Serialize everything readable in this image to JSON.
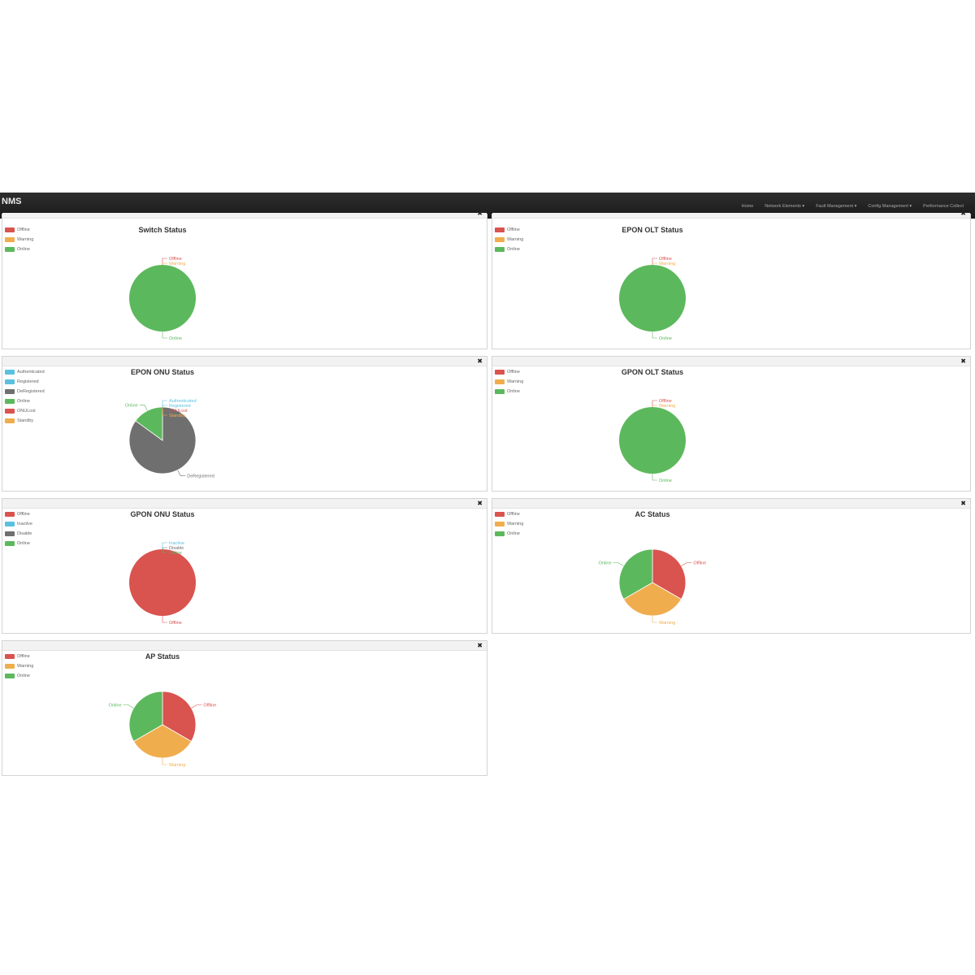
{
  "app": {
    "brand": "NMS",
    "nav": [
      "Home",
      "Network Elements ▾",
      "Fault Management ▾",
      "Config Management ▾",
      "Performance Collect"
    ]
  },
  "colors": {
    "red": "#d9534f",
    "orange": "#f0ad4e",
    "green": "#5cb85c",
    "blue": "#5bc0de",
    "gray": "#6f6f6f"
  },
  "close_icon": "✖",
  "panels": [
    {
      "title": "Switch Status",
      "legend": [
        {
          "label": "Offline",
          "color": "#d9534f"
        },
        {
          "label": "Warning",
          "color": "#f0ad4e"
        },
        {
          "label": "Online",
          "color": "#5cb85c"
        }
      ],
      "chart_data": {
        "type": "pie",
        "title": "Switch Status",
        "labels": [
          "Offline",
          "Warning",
          "Online"
        ],
        "values": [
          0,
          0,
          100
        ],
        "colors": [
          "#d9534f",
          "#f0ad4e",
          "#5cb85c"
        ]
      }
    },
    {
      "title": "EPON OLT Status",
      "legend": [
        {
          "label": "Offline",
          "color": "#d9534f"
        },
        {
          "label": "Warning",
          "color": "#f0ad4e"
        },
        {
          "label": "Online",
          "color": "#5cb85c"
        }
      ],
      "chart_data": {
        "type": "pie",
        "title": "EPON OLT Status",
        "labels": [
          "Offline",
          "Warning",
          "Online"
        ],
        "values": [
          0,
          0,
          100
        ],
        "colors": [
          "#d9534f",
          "#f0ad4e",
          "#5cb85c"
        ]
      }
    },
    {
      "title": "EPON ONU Status",
      "legend": [
        {
          "label": "Authenticated",
          "color": "#5bc0de"
        },
        {
          "label": "Registered",
          "color": "#5bc0de"
        },
        {
          "label": "DeRegistered",
          "color": "#6f6f6f"
        },
        {
          "label": "Online",
          "color": "#5cb85c"
        },
        {
          "label": "ONULost",
          "color": "#d9534f"
        },
        {
          "label": "Standby",
          "color": "#f0ad4e"
        }
      ],
      "chart_data": {
        "type": "pie",
        "title": "EPON ONU Status",
        "labels": [
          "Authenticated",
          "Registered",
          "DeRegistered",
          "Online",
          "ONULost",
          "Standby"
        ],
        "values": [
          0,
          0,
          85,
          15,
          0,
          0
        ],
        "colors": [
          "#5bc0de",
          "#5bc0de",
          "#6f6f6f",
          "#5cb85c",
          "#d9534f",
          "#f0ad4e"
        ]
      }
    },
    {
      "title": "GPON OLT Status",
      "legend": [
        {
          "label": "Offline",
          "color": "#d9534f"
        },
        {
          "label": "Warning",
          "color": "#f0ad4e"
        },
        {
          "label": "Online",
          "color": "#5cb85c"
        }
      ],
      "chart_data": {
        "type": "pie",
        "title": "GPON OLT Status",
        "labels": [
          "Offline",
          "Warning",
          "Online"
        ],
        "values": [
          0,
          0,
          100
        ],
        "colors": [
          "#d9534f",
          "#f0ad4e",
          "#5cb85c"
        ]
      }
    },
    {
      "title": "GPON ONU Status",
      "legend": [
        {
          "label": "Offline",
          "color": "#d9534f"
        },
        {
          "label": "Inactive",
          "color": "#5bc0de"
        },
        {
          "label": "Disable",
          "color": "#6f6f6f"
        },
        {
          "label": "Online",
          "color": "#5cb85c"
        }
      ],
      "chart_data": {
        "type": "pie",
        "title": "GPON ONU Status",
        "labels": [
          "Offline",
          "Inactive",
          "Disable",
          "Online"
        ],
        "values": [
          100,
          0,
          0,
          0
        ],
        "colors": [
          "#d9534f",
          "#5bc0de",
          "#6f6f6f",
          "#5cb85c"
        ]
      }
    },
    {
      "title": "AC Status",
      "legend": [
        {
          "label": "Offline",
          "color": "#d9534f"
        },
        {
          "label": "Warning",
          "color": "#f0ad4e"
        },
        {
          "label": "Online",
          "color": "#5cb85c"
        }
      ],
      "chart_data": {
        "type": "pie",
        "title": "AC Status",
        "labels": [
          "Offline",
          "Warning",
          "Online"
        ],
        "values": [
          1,
          1,
          1
        ],
        "colors": [
          "#d9534f",
          "#f0ad4e",
          "#5cb85c"
        ]
      }
    },
    {
      "title": "AP Status",
      "legend": [
        {
          "label": "Offline",
          "color": "#d9534f"
        },
        {
          "label": "Warning",
          "color": "#f0ad4e"
        },
        {
          "label": "Online",
          "color": "#5cb85c"
        }
      ],
      "chart_data": {
        "type": "pie",
        "title": "AP Status",
        "labels": [
          "Offline",
          "Warning",
          "Online"
        ],
        "values": [
          1,
          1,
          1
        ],
        "colors": [
          "#d9534f",
          "#f0ad4e",
          "#5cb85c"
        ]
      }
    }
  ]
}
